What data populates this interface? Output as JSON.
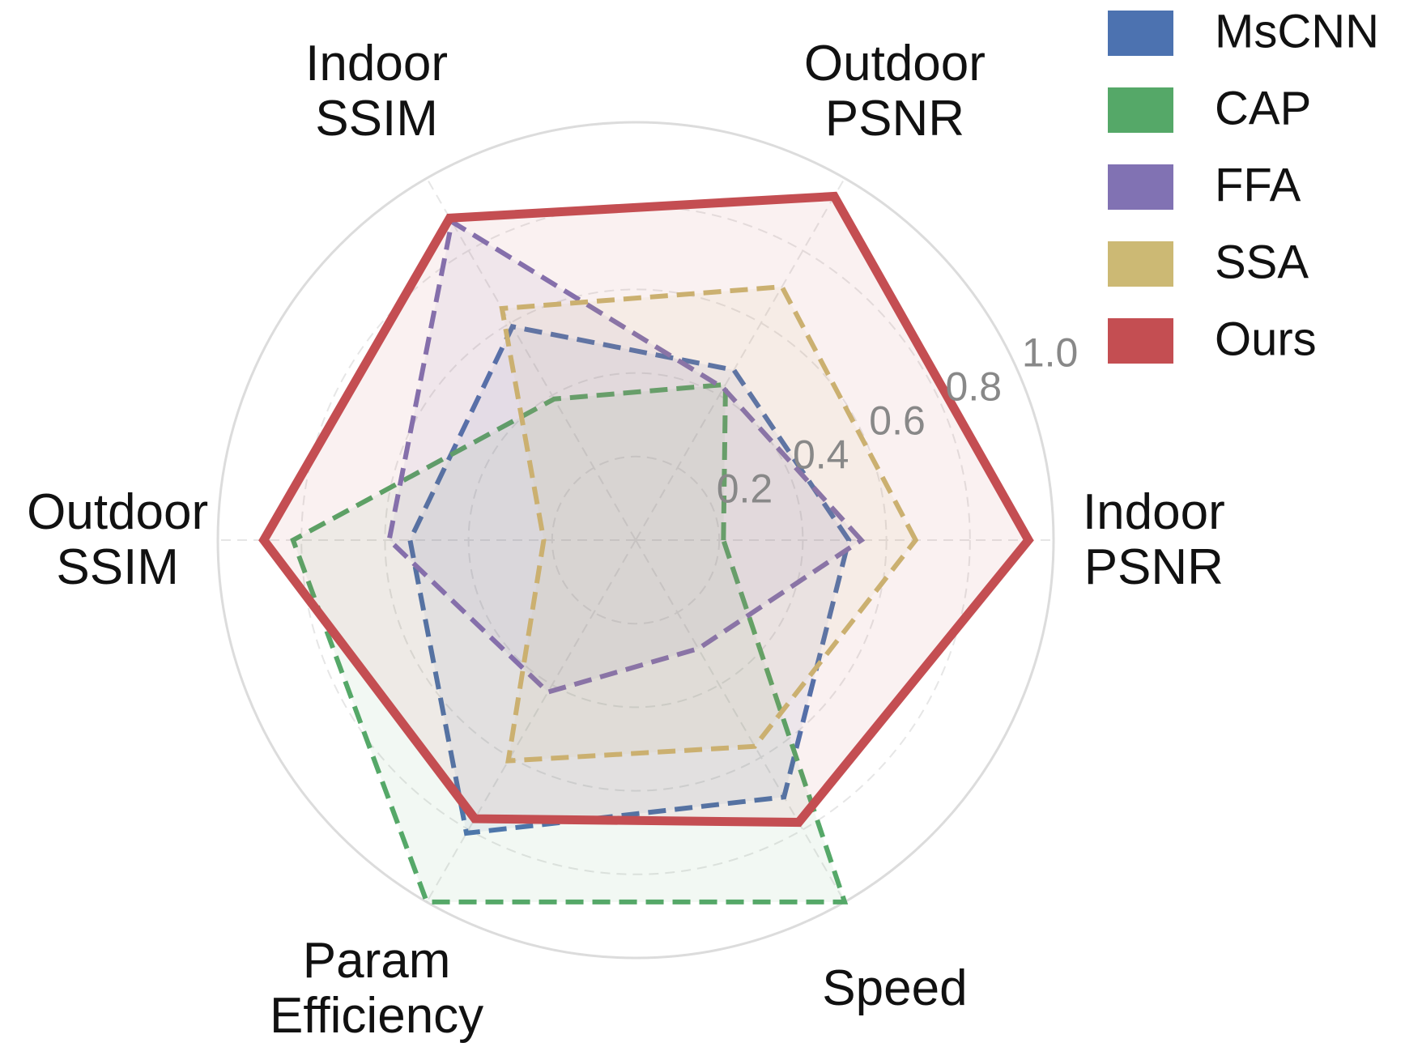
{
  "chart_data": {
    "type": "radar",
    "categories": [
      "Indoor\nPSNR",
      "Outdoor\nPSNR",
      "Indoor\nSSIM",
      "Outdoor\nSSIM",
      "Param\nEfficiency",
      "Speed"
    ],
    "series": [
      {
        "name": "MsCNN",
        "color": "#4c72b0",
        "values": [
          0.51,
          0.47,
          0.59,
          0.54,
          0.81,
          0.71
        ]
      },
      {
        "name": "CAP",
        "color": "#55a868",
        "values": [
          0.21,
          0.43,
          0.39,
          0.82,
          1.0,
          1.0
        ]
      },
      {
        "name": "FFA",
        "color": "#8172b3",
        "values": [
          0.54,
          0.42,
          0.88,
          0.59,
          0.42,
          0.3
        ]
      },
      {
        "name": "SSA",
        "color": "#ccb974",
        "values": [
          0.67,
          0.7,
          0.64,
          0.22,
          0.61,
          0.57
        ]
      },
      {
        "name": "Ours",
        "color": "#c44e52",
        "values": [
          0.94,
          0.95,
          0.89,
          0.89,
          0.77,
          0.78
        ]
      }
    ],
    "ylim": [
      0,
      1
    ],
    "yticks": [
      0.2,
      0.4,
      0.6,
      0.8,
      {
        "value": 1,
        "label": "1.0"
      }
    ],
    "grid": true
  }
}
